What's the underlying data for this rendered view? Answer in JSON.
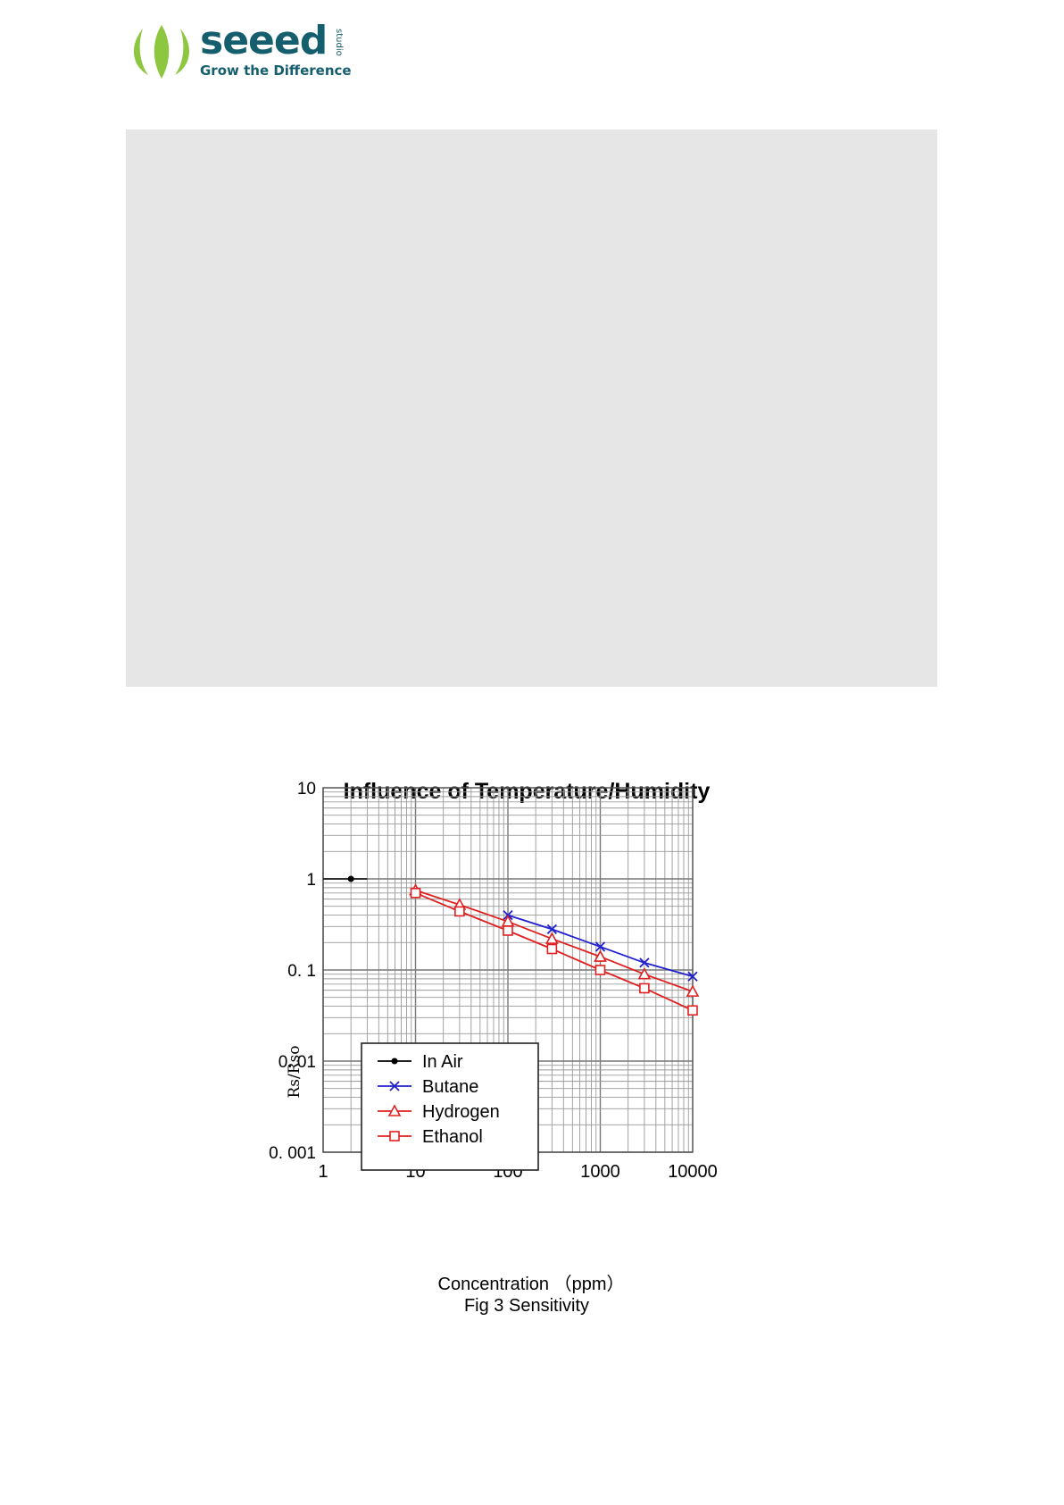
{
  "header": {
    "brand_name": "seeed",
    "brand_sub": "studio",
    "tagline": "Grow the Difference",
    "logo_icon": "leaf-logo-icon",
    "colors": {
      "brand_green": "#8dc63f",
      "brand_teal": "#155e6e"
    }
  },
  "figure": {
    "title": "Influence of Temperature/Humidity",
    "caption": "Fig 3 Sensitivity"
  },
  "chart_data": {
    "type": "line",
    "title": "Influence of Temperature/Humidity",
    "xlabel": "Concentration （ppm）",
    "ylabel": "Rs/Rso",
    "x_scale": "log",
    "y_scale": "log",
    "xlim": [
      1,
      10000
    ],
    "ylim": [
      0.001,
      10
    ],
    "x_ticks": [
      {
        "value": 1,
        "label": "1"
      },
      {
        "value": 10,
        "label": "10"
      },
      {
        "value": 100,
        "label": "100"
      },
      {
        "value": 1000,
        "label": "1000"
      },
      {
        "value": 10000,
        "label": "10000"
      }
    ],
    "y_ticks": [
      {
        "value": 10,
        "label": "10"
      },
      {
        "value": 1,
        "label": "1"
      },
      {
        "value": 0.1,
        "label": "0. 1"
      },
      {
        "value": 0.01,
        "label": "0. 01"
      },
      {
        "value": 0.001,
        "label": "0. 001"
      }
    ],
    "grid": true,
    "legend_position": "bottom-left",
    "series": [
      {
        "name": "In Air",
        "color": "#000000",
        "marker": "dot",
        "x": [
          1,
          3
        ],
        "y": [
          1,
          1
        ]
      },
      {
        "name": "Butane",
        "color": "#2020d0",
        "marker": "x",
        "x": [
          100,
          300,
          1000,
          3000,
          10000
        ],
        "y": [
          0.4,
          0.28,
          0.18,
          0.12,
          0.085
        ]
      },
      {
        "name": "Hydrogen",
        "color": "#e02020",
        "marker": "triangle",
        "x": [
          10,
          30,
          100,
          300,
          1000,
          3000,
          10000
        ],
        "y": [
          0.75,
          0.52,
          0.34,
          0.22,
          0.14,
          0.09,
          0.058
        ]
      },
      {
        "name": "Ethanol",
        "color": "#e02020",
        "marker": "square",
        "x": [
          10,
          30,
          100,
          300,
          1000,
          3000,
          10000
        ],
        "y": [
          0.7,
          0.44,
          0.27,
          0.17,
          0.1,
          0.063,
          0.036
        ]
      }
    ]
  }
}
